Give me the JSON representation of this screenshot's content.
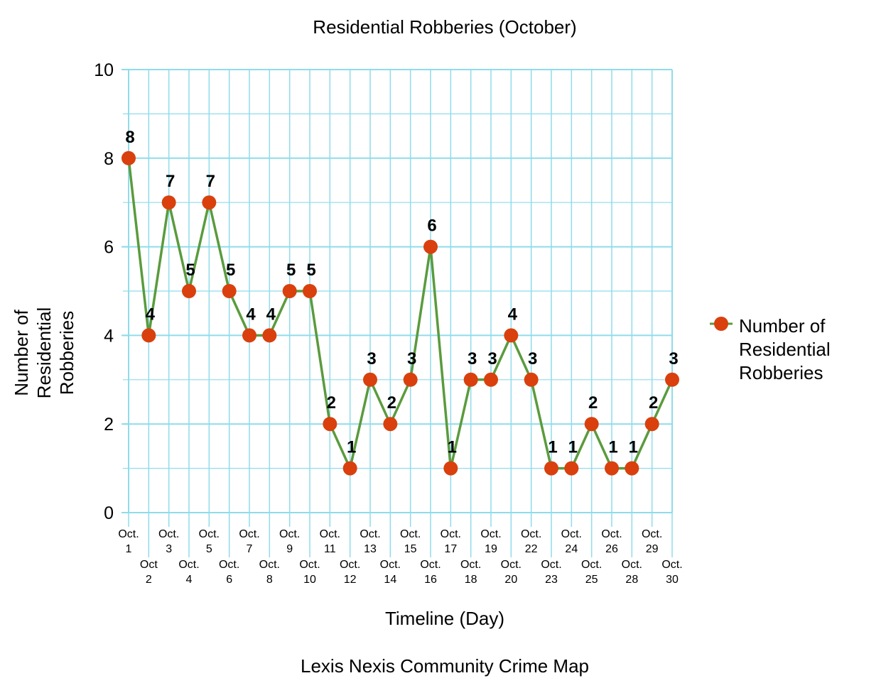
{
  "chart_data": {
    "type": "line",
    "title": "Residential Robberies (October)",
    "xlabel": "Timeline (Day)",
    "ylabel": "Number of Residential Robberies",
    "ylabel_lines": [
      "Number of",
      "Residential",
      "Robberies"
    ],
    "ylim": [
      0,
      10
    ],
    "yticks": [
      "0",
      "2",
      "4",
      "6",
      "8",
      "10"
    ],
    "grid": true,
    "legend_position": "right",
    "categories": [
      [
        "Oct.",
        "1"
      ],
      [
        "Oct",
        "2"
      ],
      [
        "Oct.",
        "3"
      ],
      [
        "Oct.",
        "4"
      ],
      [
        "Oct.",
        "5"
      ],
      [
        "Oct.",
        "6"
      ],
      [
        "Oct.",
        "7"
      ],
      [
        "Oct.",
        "8"
      ],
      [
        "Oct.",
        "9"
      ],
      [
        "Oct.",
        "10"
      ],
      [
        "Oct.",
        "11"
      ],
      [
        "Oct.",
        "12"
      ],
      [
        "Oct.",
        "13"
      ],
      [
        "Oct.",
        "14"
      ],
      [
        "Oct.",
        "15"
      ],
      [
        "Oct.",
        "16"
      ],
      [
        "Oct.",
        "17"
      ],
      [
        "Oct.",
        "18"
      ],
      [
        "Oct.",
        "19"
      ],
      [
        "Oct.",
        "20"
      ],
      [
        "Oct.",
        "22"
      ],
      [
        "Oct.",
        "23"
      ],
      [
        "Oct.",
        "24"
      ],
      [
        "Oct.",
        "25"
      ],
      [
        "Oct.",
        "26"
      ],
      [
        "Oct.",
        "28"
      ],
      [
        "Oct.",
        "29"
      ],
      [
        "Oct.",
        "30"
      ]
    ],
    "series": [
      {
        "name": "Number of Residential Robberies",
        "name_lines": [
          "Number of",
          "Residential",
          "Robberies"
        ],
        "line_color": "#5a9b3e",
        "marker_color": "#d9400d",
        "values": [
          8,
          4,
          7,
          5,
          7,
          5,
          4,
          4,
          5,
          5,
          2,
          1,
          3,
          2,
          3,
          6,
          1,
          3,
          3,
          4,
          3,
          1,
          1,
          2,
          1,
          1,
          2,
          3
        ]
      }
    ],
    "grid_color": "#8fdcea",
    "source": "Lexis Nexis Community Crime Map"
  }
}
